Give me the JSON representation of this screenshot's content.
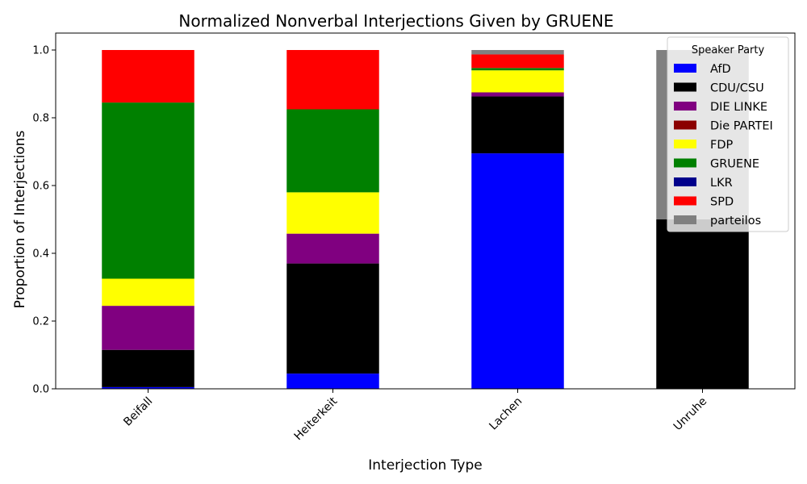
{
  "chart_data": {
    "type": "bar",
    "stacked": true,
    "title": "Normalized Nonverbal Interjections Given by GRUENE",
    "xlabel": "Interjection Type",
    "ylabel": "Proportion of Interjections",
    "ylim": [
      0,
      1.05
    ],
    "yticks": [
      "0.0",
      "0.2",
      "0.4",
      "0.6",
      "0.8",
      "1.0"
    ],
    "grid": false,
    "legend": {
      "title": "Speaker Party",
      "placement": "top-right"
    },
    "categories": [
      "Beifall",
      "Heiterkeit",
      "Lachen",
      "Unruhe"
    ],
    "series": [
      {
        "name": "AfD",
        "color": "#0000ff",
        "values": [
          0.005,
          0.045,
          0.695,
          0.0
        ]
      },
      {
        "name": "CDU/CSU",
        "color": "#000000",
        "values": [
          0.11,
          0.325,
          0.168,
          0.5
        ]
      },
      {
        "name": "DIE LINKE",
        "color": "#800080",
        "values": [
          0.13,
          0.088,
          0.012,
          0.0
        ]
      },
      {
        "name": "Die PARTEI",
        "color": "#8b0000",
        "values": [
          0.0,
          0.0,
          0.0,
          0.0
        ]
      },
      {
        "name": "FDP",
        "color": "#ffff00",
        "values": [
          0.08,
          0.122,
          0.065,
          0.0
        ]
      },
      {
        "name": "GRUENE",
        "color": "#008000",
        "values": [
          0.52,
          0.245,
          0.007,
          0.0
        ]
      },
      {
        "name": "LKR",
        "color": "#00008b",
        "values": [
          0.0,
          0.0,
          0.0,
          0.0
        ]
      },
      {
        "name": "SPD",
        "color": "#ff0000",
        "values": [
          0.155,
          0.175,
          0.04,
          0.0
        ]
      },
      {
        "name": "parteilos",
        "color": "#808080",
        "values": [
          0.0,
          0.0,
          0.013,
          0.5
        ]
      }
    ]
  }
}
